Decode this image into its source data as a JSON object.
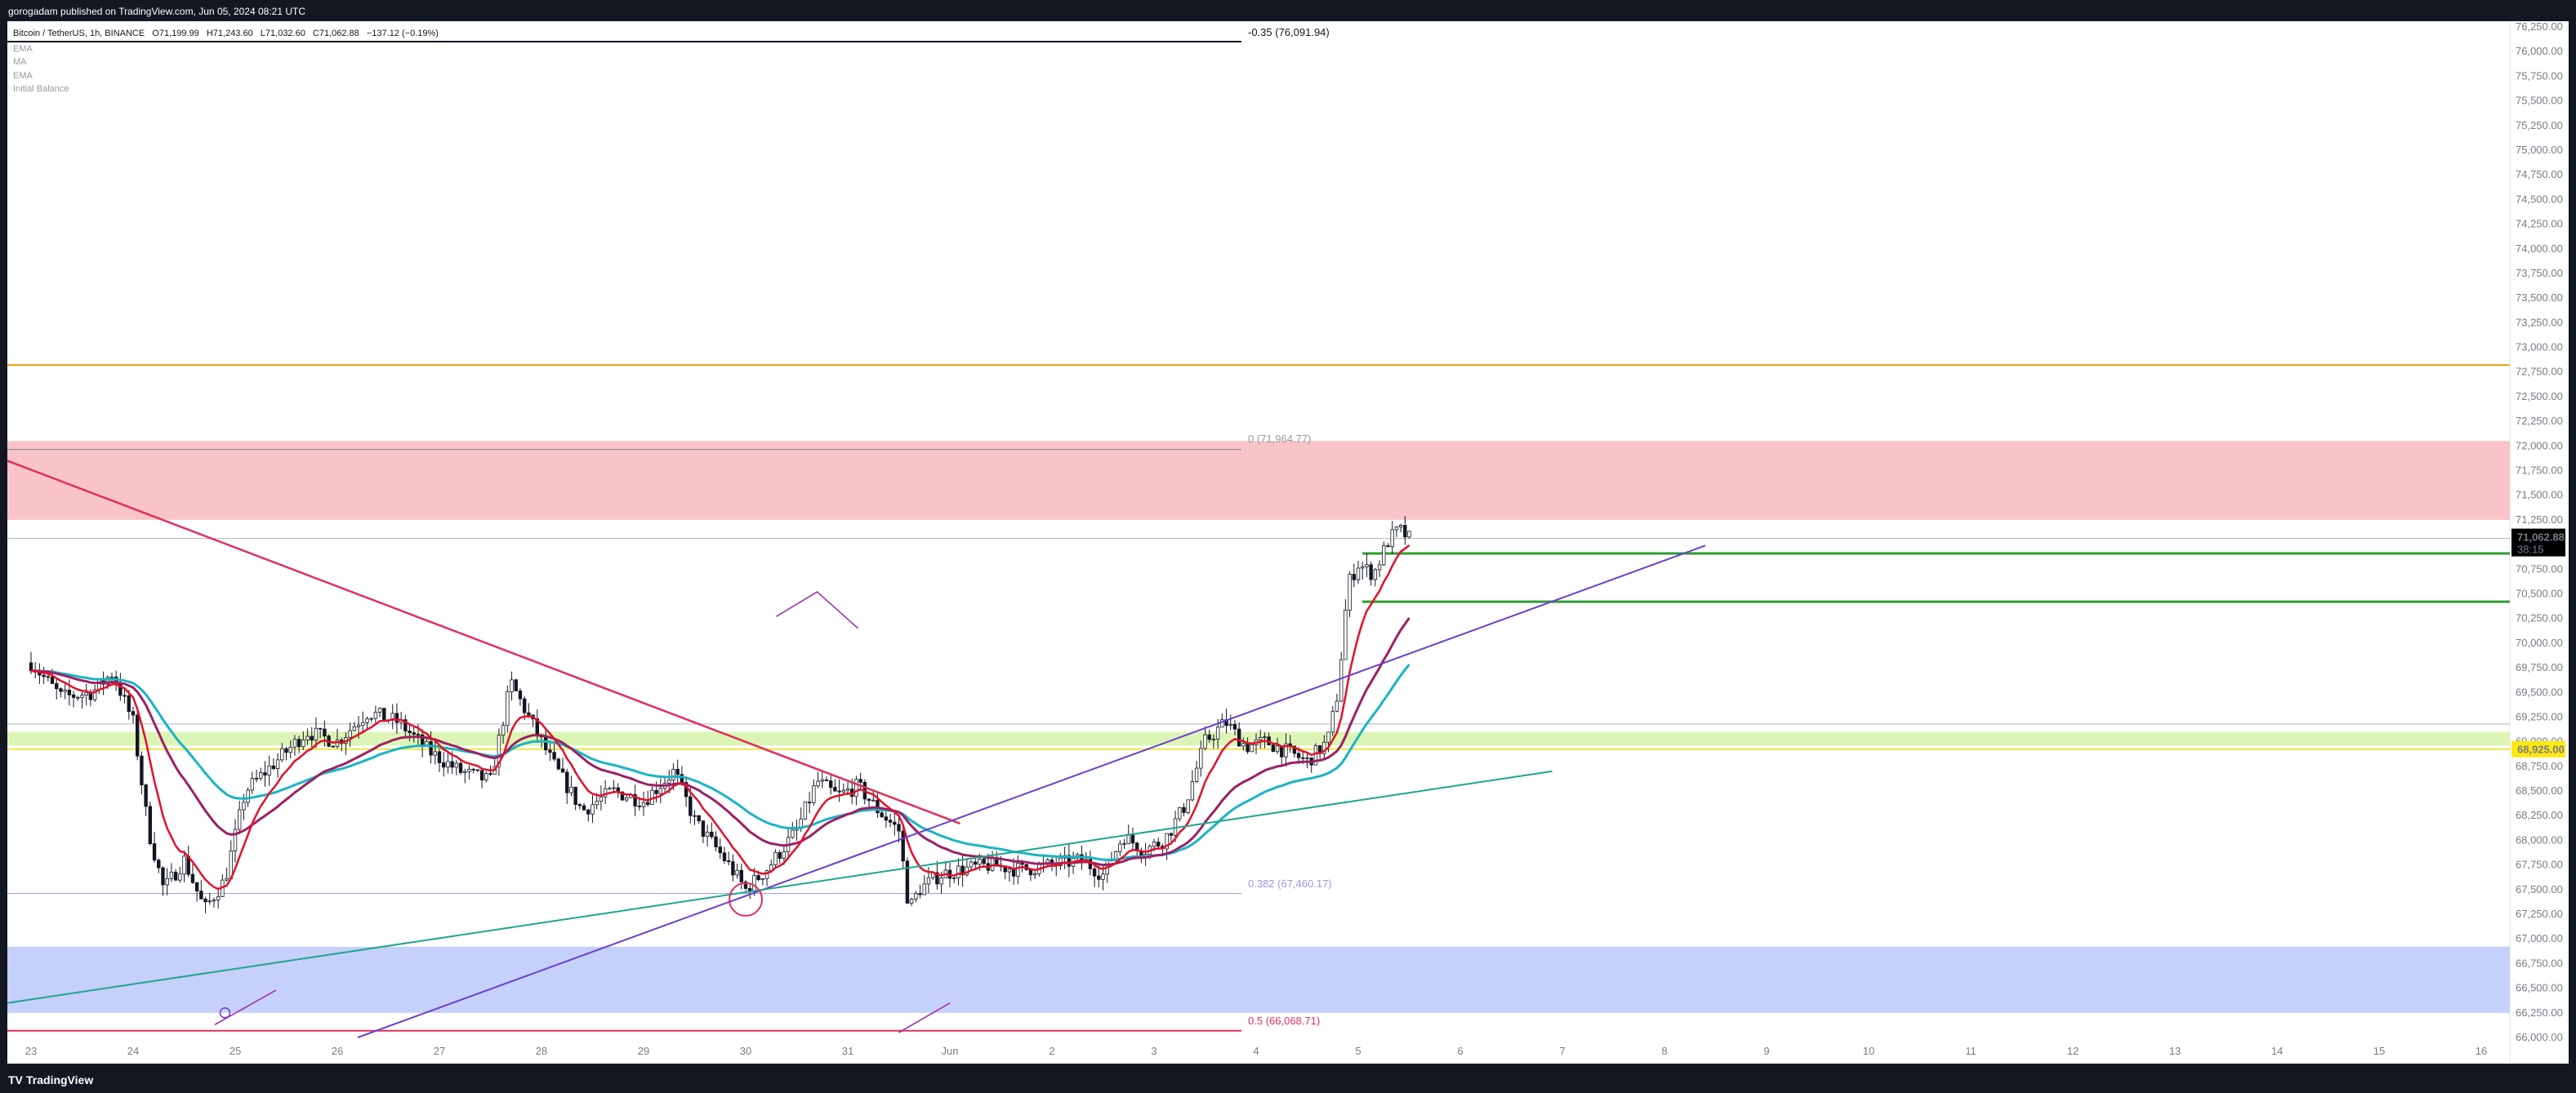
{
  "header": {
    "publisher_line": "gorogadam published on TradingView.com, Jun 05, 2024 08:21 UTC"
  },
  "legend": {
    "symbol_line": "Bitcoin / TetherUS, 1h, BINANCE",
    "ohlc": {
      "open": "71,199.99",
      "high": "71,243.60",
      "low": "71,032.60",
      "close": "71,062.88",
      "change": "−137.12 (−0.19%)"
    },
    "ohlc_prefixes": [
      "O",
      "H",
      "L",
      "C"
    ],
    "indicators": [
      "EMA",
      "MA",
      "EMA",
      "Initial Balance"
    ]
  },
  "footer": {
    "brand": "TradingView"
  },
  "colors": {
    "background": "#ffffff",
    "frame": "#131722",
    "resistance_zone": "#f9c4c8",
    "support_zone": "#c5d0fb",
    "highlight_band": "#dcf5b6",
    "orange_level": "#f29a0c",
    "yellow_level": "#ede34a",
    "red_trendline": "#e0305a",
    "purple_trendline": "#6a3fcf",
    "teal_trendline": "#1fa58f",
    "green_levels": "#2f9b30",
    "ema_fast": "#e3102c",
    "ma_mid": "#9c2163",
    "ema_slow": "#1bb4c4",
    "price_label_bg": "#000000",
    "level_label_bg": "#ffe813"
  },
  "chart_data": {
    "type": "candlestick",
    "symbol": "BTC/USDT",
    "interval": "1h",
    "exchange": "BINANCE",
    "ylim": [
      66000,
      76250
    ],
    "y_ticks": [
      "76,250.00",
      "76,000.00",
      "75,750.00",
      "75,500.00",
      "75,250.00",
      "75,000.00",
      "74,750.00",
      "74,500.00",
      "74,250.00",
      "74,000.00",
      "73,750.00",
      "73,500.00",
      "73,250.00",
      "73,000.00",
      "72,750.00",
      "72,500.00",
      "72,250.00",
      "72,000.00",
      "71,750.00",
      "71,500.00",
      "71,250.00",
      "71,000.00",
      "70,750.00",
      "70,500.00",
      "70,250.00",
      "70,000.00",
      "69,750.00",
      "69,500.00",
      "69,250.00",
      "69,000.00",
      "68,750.00",
      "68,500.00",
      "68,250.00",
      "68,000.00",
      "67,750.00",
      "67,500.00",
      "67,250.00",
      "67,000.00",
      "66,750.00",
      "66,500.00",
      "66,250.00",
      "66,000.00"
    ],
    "x_ticks": [
      "23",
      "24",
      "25",
      "26",
      "27",
      "28",
      "29",
      "30",
      "31",
      "Jun",
      "2",
      "3",
      "4",
      "5",
      "6",
      "7",
      "8",
      "9",
      "10",
      "11",
      "12",
      "13",
      "14",
      "15",
      "16"
    ],
    "current_price": "71,062.88",
    "countdown": "38:15",
    "level_label": "68,925.00",
    "fib_labels": {
      "top": "-0.35 (76,091.94)",
      "zero": "0 (71,964.77)",
      "mid": "0.382 (67,460.17)",
      "half": "0.5 (66,068.71)"
    },
    "zones": [
      {
        "name": "resistance",
        "from": 71250,
        "to": 72050
      },
      {
        "name": "support",
        "from": 66250,
        "to": 66920
      },
      {
        "name": "highlight",
        "from": 68960,
        "to": 69100
      }
    ],
    "horizontal_levels": [
      {
        "name": "orange",
        "price": 72820
      },
      {
        "name": "yellow",
        "price": 68925
      },
      {
        "name": "gray",
        "price": 69180
      },
      {
        "name": "green_upper",
        "price": 70910
      },
      {
        "name": "green_lower",
        "price": 70420
      }
    ],
    "candles_close_path": [
      [
        0.0,
        69800
      ],
      [
        0.3,
        69450
      ],
      [
        0.6,
        69500
      ],
      [
        0.8,
        69700
      ],
      [
        1.0,
        69200
      ],
      [
        1.15,
        68100
      ],
      [
        1.3,
        67500
      ],
      [
        1.5,
        67800
      ],
      [
        1.7,
        67300
      ],
      [
        1.9,
        67600
      ],
      [
        2.1,
        68500
      ],
      [
        2.4,
        68800
      ],
      [
        2.7,
        69100
      ],
      [
        3.0,
        69000
      ],
      [
        3.3,
        69300
      ],
      [
        3.6,
        69200
      ],
      [
        3.9,
        68900
      ],
      [
        4.2,
        68700
      ],
      [
        4.5,
        68600
      ],
      [
        4.7,
        69600
      ],
      [
        4.9,
        69200
      ],
      [
        5.1,
        68800
      ],
      [
        5.4,
        68300
      ],
      [
        5.7,
        68500
      ],
      [
        6.0,
        68400
      ],
      [
        6.3,
        68700
      ],
      [
        6.5,
        68200
      ],
      [
        6.8,
        67800
      ],
      [
        7.0,
        67500
      ],
      [
        7.2,
        67700
      ],
      [
        7.5,
        68100
      ],
      [
        7.7,
        68600
      ],
      [
        7.9,
        68450
      ],
      [
        8.1,
        68550
      ],
      [
        8.3,
        68300
      ],
      [
        8.5,
        68100
      ],
      [
        8.6,
        67300
      ],
      [
        8.7,
        67500
      ],
      [
        8.9,
        67650
      ],
      [
        9.1,
        67700
      ],
      [
        9.4,
        67750
      ],
      [
        9.7,
        67700
      ],
      [
        10.0,
        67750
      ],
      [
        10.3,
        67800
      ],
      [
        10.5,
        67650
      ],
      [
        10.7,
        68050
      ],
      [
        10.9,
        67900
      ],
      [
        11.1,
        68000
      ],
      [
        11.3,
        68350
      ],
      [
        11.5,
        69000
      ],
      [
        11.7,
        69200
      ],
      [
        11.9,
        68950
      ],
      [
        12.1,
        69000
      ],
      [
        12.3,
        68900
      ],
      [
        12.5,
        68800
      ],
      [
        12.7,
        69000
      ],
      [
        12.8,
        69500
      ],
      [
        12.9,
        70600
      ],
      [
        13.0,
        70800
      ],
      [
        13.15,
        70700
      ],
      [
        13.3,
        71050
      ],
      [
        13.4,
        71150
      ],
      [
        13.5,
        71062
      ]
    ]
  }
}
